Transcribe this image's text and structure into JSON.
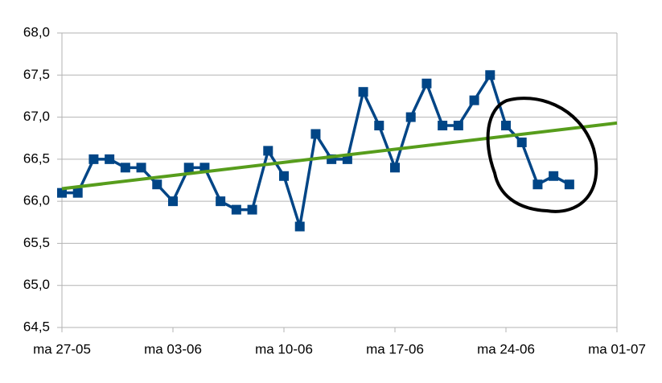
{
  "chart_data": {
    "type": "line",
    "x": [
      "27-05",
      "28-05",
      "29-05",
      "30-05",
      "31-05",
      "01-06",
      "02-06",
      "03-06",
      "04-06",
      "05-06",
      "06-06",
      "07-06",
      "08-06",
      "09-06",
      "10-06",
      "11-06",
      "12-06",
      "13-06",
      "14-06",
      "15-06",
      "16-06",
      "17-06",
      "18-06",
      "19-06",
      "20-06",
      "21-06",
      "22-06",
      "23-06",
      "24-06",
      "25-06",
      "26-06",
      "27-06",
      "28-06"
    ],
    "series": [
      {
        "color": "#004586",
        "values": [
          66.1,
          66.1,
          66.5,
          66.5,
          66.4,
          66.4,
          66.2,
          66.0,
          66.4,
          66.4,
          66.0,
          65.9,
          65.9,
          66.6,
          66.3,
          65.7,
          66.8,
          66.5,
          66.5,
          67.3,
          66.9,
          66.4,
          67.0,
          67.4,
          66.9,
          66.9,
          67.2,
          67.5,
          66.9,
          66.7,
          66.2,
          66.3,
          66.2
        ]
      }
    ],
    "trendline": {
      "color": "#579d1c",
      "x": [
        "27-05",
        "01-07"
      ],
      "values": [
        66.15,
        66.93
      ]
    },
    "xlim": [
      "27-05",
      "01-07"
    ],
    "xticks": [
      {
        "value": "27-05",
        "label": "ma 27-05"
      },
      {
        "value": "03-06",
        "label": "ma 03-06"
      },
      {
        "value": "10-06",
        "label": "ma 10-06"
      },
      {
        "value": "17-06",
        "label": "ma 17-06"
      },
      {
        "value": "24-06",
        "label": "ma 24-06"
      },
      {
        "value": "01-07",
        "label": "ma 01-07"
      }
    ],
    "ylim": [
      64.5,
      68
    ],
    "yticks": [
      {
        "value": 64.5,
        "label": "64,5"
      },
      {
        "value": 65,
        "label": "65,0"
      },
      {
        "value": 65.5,
        "label": "65,5"
      },
      {
        "value": 66,
        "label": "66,0"
      },
      {
        "value": 66.5,
        "label": "66,5"
      },
      {
        "value": 67,
        "label": "67,0"
      },
      {
        "value": 67.5,
        "label": "67,5"
      },
      {
        "value": 68,
        "label": "68,0"
      }
    ],
    "grid": true
  }
}
